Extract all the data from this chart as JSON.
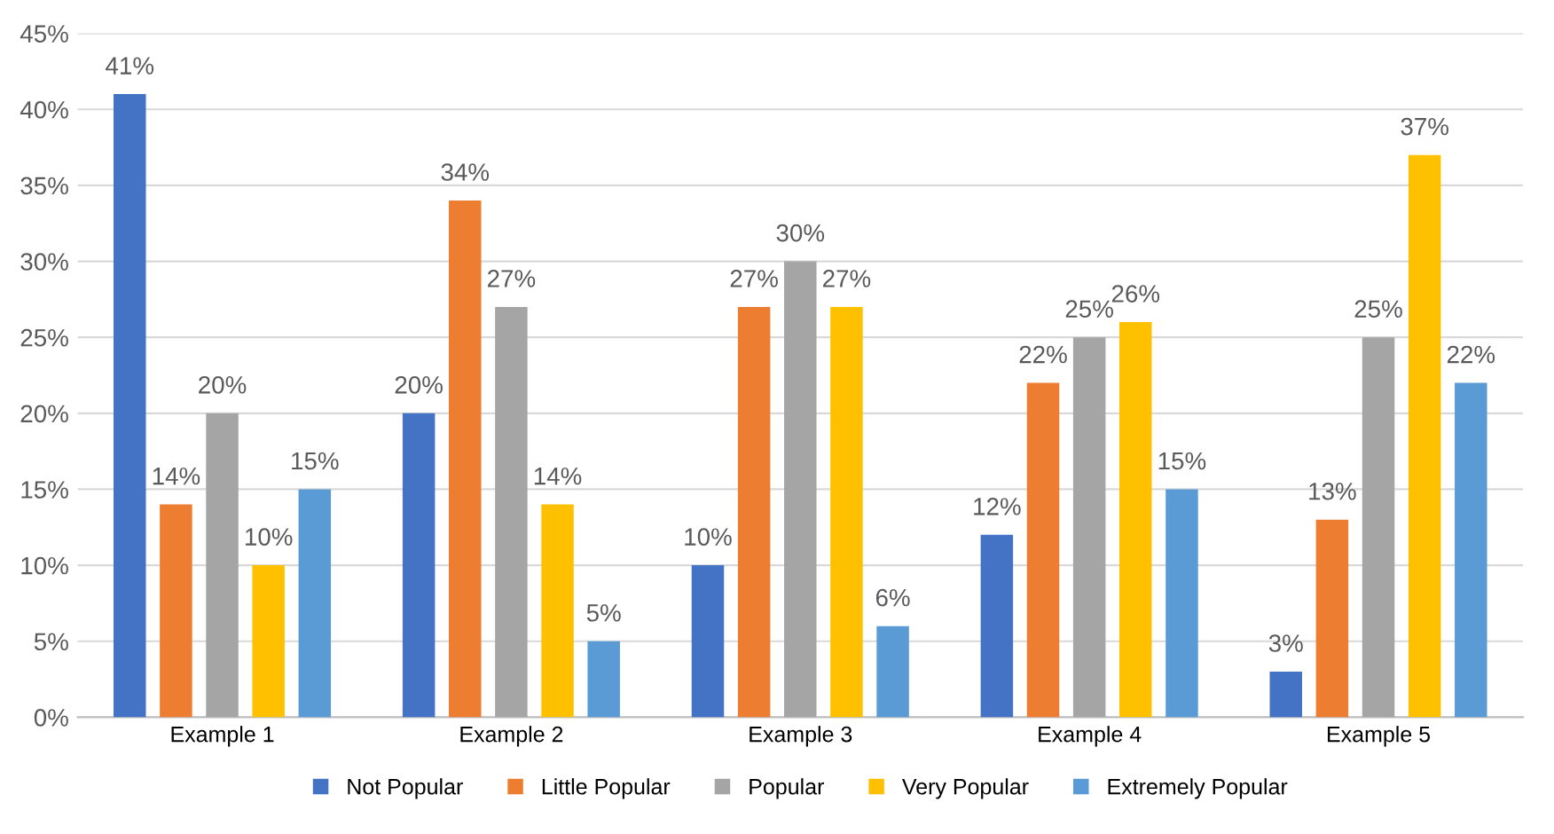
{
  "chart_data": {
    "type": "bar",
    "categories": [
      "Example 1",
      "Example 2",
      "Example 3",
      "Example 4",
      "Example 5"
    ],
    "series": [
      {
        "name": "Not Popular",
        "color": "#4472c4",
        "values": [
          41,
          20,
          10,
          12,
          3
        ],
        "value_labels": [
          "41%",
          "20%",
          "10%",
          "12%",
          "3%"
        ]
      },
      {
        "name": "Little Popular",
        "color": "#ed7d31",
        "values": [
          14,
          34,
          27,
          22,
          13
        ],
        "value_labels": [
          "14%",
          "34%",
          "27%",
          "22%",
          "13%"
        ]
      },
      {
        "name": "Popular",
        "color": "#a5a5a5",
        "values": [
          20,
          27,
          30,
          25,
          25
        ],
        "value_labels": [
          "20%",
          "27%",
          "30%",
          "25%",
          "25%"
        ]
      },
      {
        "name": "Very Popular",
        "color": "#ffc000",
        "values": [
          10,
          14,
          27,
          26,
          37
        ],
        "value_labels": [
          "10%",
          "14%",
          "27%",
          "26%",
          "37%"
        ]
      },
      {
        "name": "Extremely Popular",
        "color": "#5b9bd5",
        "values": [
          15,
          5,
          6,
          15,
          22
        ],
        "value_labels": [
          "15%",
          "5%",
          "6%",
          "15%",
          "22%"
        ]
      }
    ],
    "ylim": [
      0,
      45
    ],
    "yticks": [
      {
        "value": 0,
        "label": "0%"
      },
      {
        "value": 5,
        "label": "5%"
      },
      {
        "value": 10,
        "label": "10%"
      },
      {
        "value": 15,
        "label": "15%"
      },
      {
        "value": 20,
        "label": "20%"
      },
      {
        "value": 25,
        "label": "25%"
      },
      {
        "value": 30,
        "label": "30%"
      },
      {
        "value": 35,
        "label": "35%"
      },
      {
        "value": 40,
        "label": "40%"
      },
      {
        "value": 45,
        "label": "45%"
      }
    ],
    "grid": "y",
    "legend": "bottom"
  }
}
